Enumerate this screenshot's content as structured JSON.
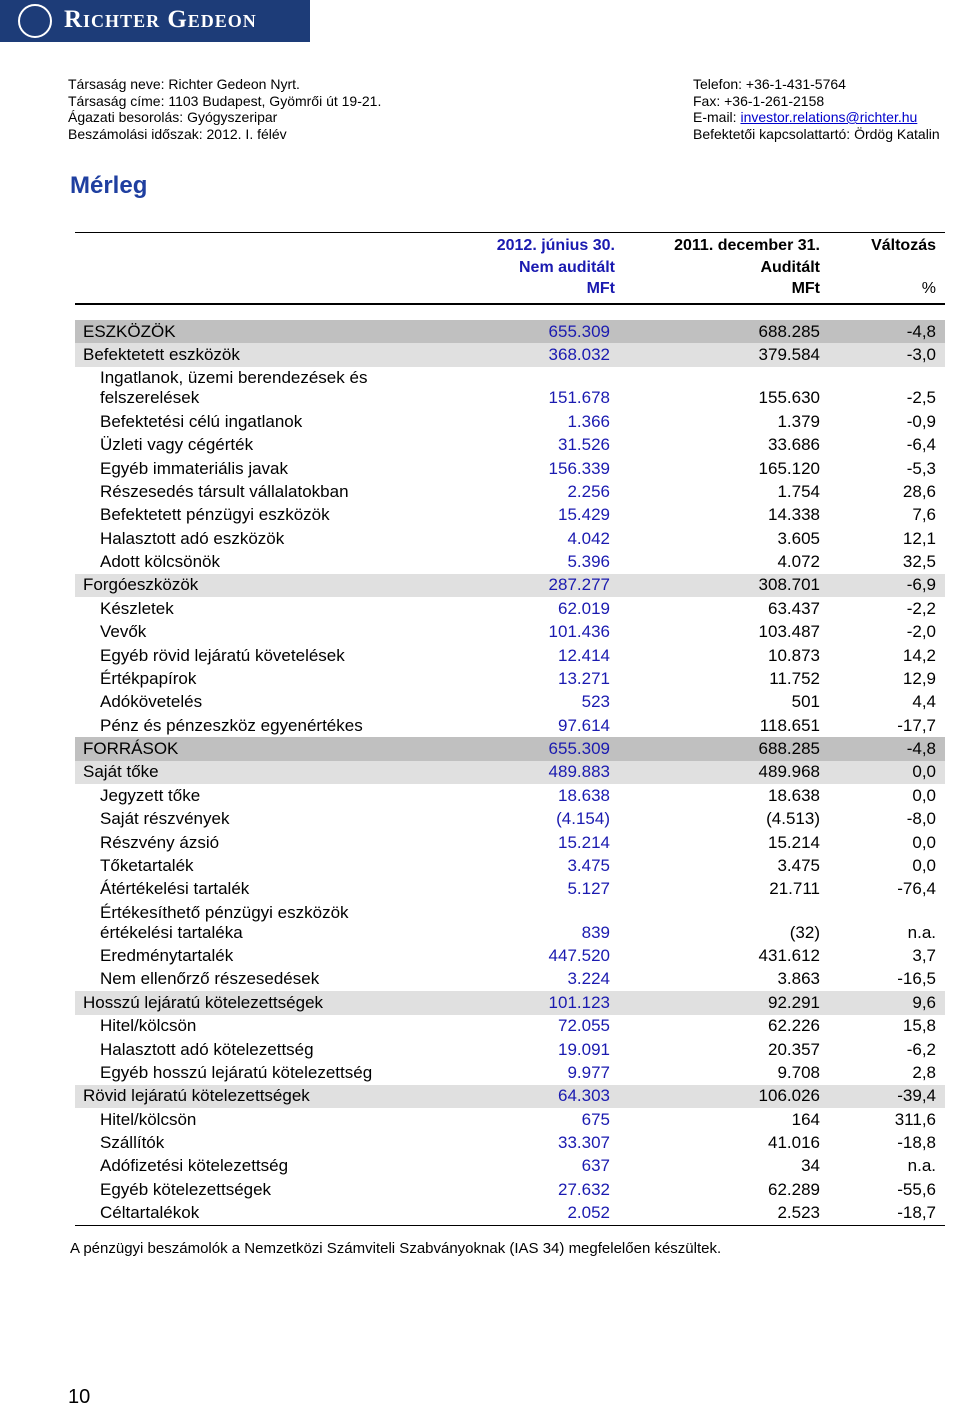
{
  "header": {
    "logo": "Richter Gedeon",
    "left": [
      "Társaság neve: Richter Gedeon Nyrt.",
      "Társaság címe: 1103 Budapest, Gyömrői út 19-21.",
      "Ágazati besorolás: Gyógyszeripar",
      "Beszámolási időszak: 2012. I. félév"
    ],
    "right": [
      "Telefon: +36-1-431-5764",
      "Fax: +36-1-261-2158"
    ],
    "email": {
      "label": "E-mail:",
      "link": "investor.relations@richter.hu"
    },
    "contact": "Befektetői kapcsolattartó: Ördög Katalin"
  },
  "title": "Mérleg",
  "table": {
    "columns": [
      {
        "date": "2012. június 30.",
        "audit": "Nem auditált",
        "unit": "MFt"
      },
      {
        "date": "2011. december 31.",
        "audit": "Auditált",
        "unit": "MFt"
      },
      {
        "label": "Változás",
        "unit": "%"
      }
    ],
    "sections": [
      {
        "label": "ESZKÖZÖK",
        "values": [
          "655.309",
          "688.285",
          "-4,8"
        ],
        "groups": [
          {
            "label": "Befektetett eszközök",
            "values": [
              "368.032",
              "379.584",
              "-3,0"
            ],
            "items": [
              {
                "label": "Ingatlanok, üzemi berendezések és felszerelések",
                "values": [
                  "151.678",
                  "155.630",
                  "-2,5"
                ]
              },
              {
                "label": "Befektetési célú ingatlanok",
                "values": [
                  "1.366",
                  "1.379",
                  "-0,9"
                ]
              },
              {
                "label": "Üzleti vagy cégérték",
                "values": [
                  "31.526",
                  "33.686",
                  "-6,4"
                ]
              },
              {
                "label": "Egyéb immateriális javak",
                "values": [
                  "156.339",
                  "165.120",
                  "-5,3"
                ]
              },
              {
                "label": "Részesedés társult vállalatokban",
                "values": [
                  "2.256",
                  "1.754",
                  "28,6"
                ]
              },
              {
                "label": "Befektetett pénzügyi eszközök",
                "values": [
                  "15.429",
                  "14.338",
                  "7,6"
                ]
              },
              {
                "label": "Halasztott adó eszközök",
                "values": [
                  "4.042",
                  "3.605",
                  "12,1"
                ]
              },
              {
                "label": "Adott kölcsönök",
                "values": [
                  "5.396",
                  "4.072",
                  "32,5"
                ]
              }
            ]
          },
          {
            "label": "Forgóeszközök",
            "values": [
              "287.277",
              "308.701",
              "-6,9"
            ],
            "items": [
              {
                "label": "Készletek",
                "values": [
                  "62.019",
                  "63.437",
                  "-2,2"
                ]
              },
              {
                "label": "Vevők",
                "values": [
                  "101.436",
                  "103.487",
                  "-2,0"
                ]
              },
              {
                "label": "Egyéb rövid lejáratú követelések",
                "values": [
                  "12.414",
                  "10.873",
                  "14,2"
                ]
              },
              {
                "label": "Értékpapírok",
                "values": [
                  "13.271",
                  "11.752",
                  "12,9"
                ]
              },
              {
                "label": "Adókövetelés",
                "values": [
                  "523",
                  "501",
                  "4,4"
                ]
              },
              {
                "label": "Pénz és pénzeszköz egyenértékes",
                "values": [
                  "97.614",
                  "118.651",
                  "-17,7"
                ]
              }
            ]
          }
        ]
      },
      {
        "label": "FORRÁSOK",
        "values": [
          "655.309",
          "688.285",
          "-4,8"
        ],
        "groups": [
          {
            "label": "Saját tőke",
            "values": [
              "489.883",
              "489.968",
              "0,0"
            ],
            "items": [
              {
                "label": "Jegyzett tőke",
                "values": [
                  "18.638",
                  "18.638",
                  "0,0"
                ]
              },
              {
                "label": "Saját részvények",
                "values": [
                  "(4.154)",
                  "(4.513)",
                  "-8,0"
                ]
              },
              {
                "label": "Részvény ázsió",
                "values": [
                  "15.214",
                  "15.214",
                  "0,0"
                ]
              },
              {
                "label": "Tőketartalék",
                "values": [
                  "3.475",
                  "3.475",
                  "0,0"
                ]
              },
              {
                "label": "Átértékelési tartalék",
                "values": [
                  "5.127",
                  "21.711",
                  "-76,4"
                ]
              },
              {
                "label": "Értékesíthető pénzügyi eszközök értékelési tartaléka",
                "values": [
                  "839",
                  "(32)",
                  "n.a."
                ]
              },
              {
                "label": "Eredménytartalék",
                "values": [
                  "447.520",
                  "431.612",
                  "3,7"
                ]
              },
              {
                "label": "Nem ellenőrző részesedések",
                "values": [
                  "3.224",
                  "3.863",
                  "-16,5"
                ]
              }
            ]
          },
          {
            "label": "Hosszú lejáratú kötelezettségek",
            "values": [
              "101.123",
              "92.291",
              "9,6"
            ],
            "items": [
              {
                "label": "Hitel/kölcsön",
                "values": [
                  "72.055",
                  "62.226",
                  "15,8"
                ]
              },
              {
                "label": "Halasztott adó kötelezettség",
                "values": [
                  "19.091",
                  "20.357",
                  "-6,2"
                ]
              },
              {
                "label": "Egyéb hosszú lejáratú kötelezettség",
                "values": [
                  "9.977",
                  "9.708",
                  "2,8"
                ]
              }
            ]
          },
          {
            "label": "Rövid lejáratú kötelezettségek",
            "values": [
              "64.303",
              "106.026",
              "-39,4"
            ],
            "items": [
              {
                "label": "Hitel/kölcsön",
                "values": [
                  "675",
                  "164",
                  "311,6"
                ]
              },
              {
                "label": "Szállítók",
                "values": [
                  "33.307",
                  "41.016",
                  "-18,8"
                ]
              },
              {
                "label": "Adófizetési kötelezettség",
                "values": [
                  "637",
                  "34",
                  "n.a."
                ]
              },
              {
                "label": "Egyéb kötelezettségek",
                "values": [
                  "27.632",
                  "62.289",
                  "-55,6"
                ]
              },
              {
                "label": "Céltartalékok",
                "values": [
                  "2.052",
                  "2.523",
                  "-18,7"
                ]
              }
            ]
          }
        ]
      }
    ]
  },
  "footnote": "A pénzügyi beszámolók a Nemzetközi Számviteli Szabványoknak (IAS 34) megfelelően készültek.",
  "page_number": "10"
}
